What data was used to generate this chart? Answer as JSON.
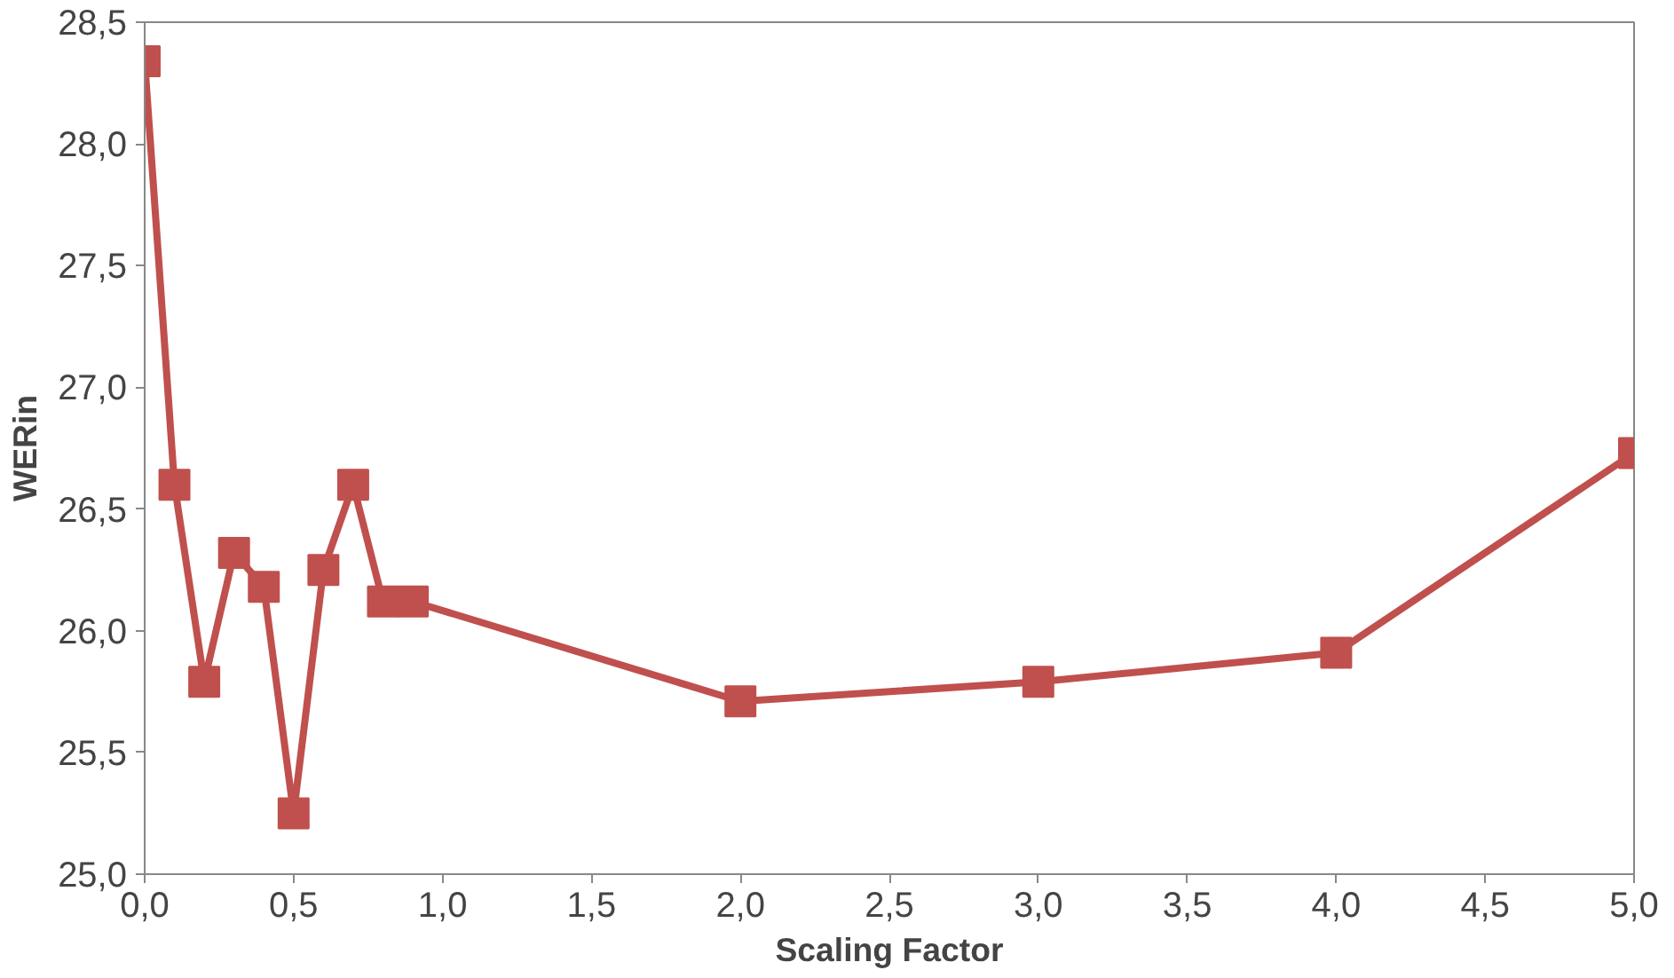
{
  "chart_data": {
    "type": "line",
    "xlabel": "Scaling Factor",
    "ylabel": "WERin",
    "x": [
      0,
      0.1,
      0.2,
      0.3,
      0.4,
      0.5,
      0.6,
      0.7,
      0.8,
      0.9,
      2,
      3,
      4,
      5
    ],
    "series": [
      {
        "color": "#c0504d",
        "values": [
          28.34,
          26.6,
          25.79,
          26.32,
          26.18,
          25.25,
          26.25,
          26.6,
          26.12,
          26.12,
          25.71,
          25.79,
          25.91,
          26.73
        ]
      }
    ],
    "xlim": [
      0,
      5
    ],
    "ylim": [
      25,
      28.5
    ],
    "xticks": [
      {
        "value": 0,
        "label": "0,0"
      },
      {
        "value": 0.5,
        "label": "0,5"
      },
      {
        "value": 1,
        "label": "1,0"
      },
      {
        "value": 1.5,
        "label": "1,5"
      },
      {
        "value": 2,
        "label": "2,0"
      },
      {
        "value": 2.5,
        "label": "2,5"
      },
      {
        "value": 3,
        "label": "3,0"
      },
      {
        "value": 3.5,
        "label": "3,5"
      },
      {
        "value": 4,
        "label": "4,0"
      },
      {
        "value": 4.5,
        "label": "4,5"
      },
      {
        "value": 5,
        "label": "5,0"
      }
    ],
    "yticks": [
      {
        "value": 25,
        "label": "25,0"
      },
      {
        "value": 25.5,
        "label": "25,5"
      },
      {
        "value": 26,
        "label": "26,0"
      },
      {
        "value": 26.5,
        "label": "26,5"
      },
      {
        "value": 27,
        "label": "27,0"
      },
      {
        "value": 27.5,
        "label": "27,5"
      },
      {
        "value": 28,
        "label": "28,0"
      },
      {
        "value": 28.5,
        "label": "28,5"
      }
    ],
    "grid": false,
    "marker": "square",
    "line_style": "solid"
  }
}
